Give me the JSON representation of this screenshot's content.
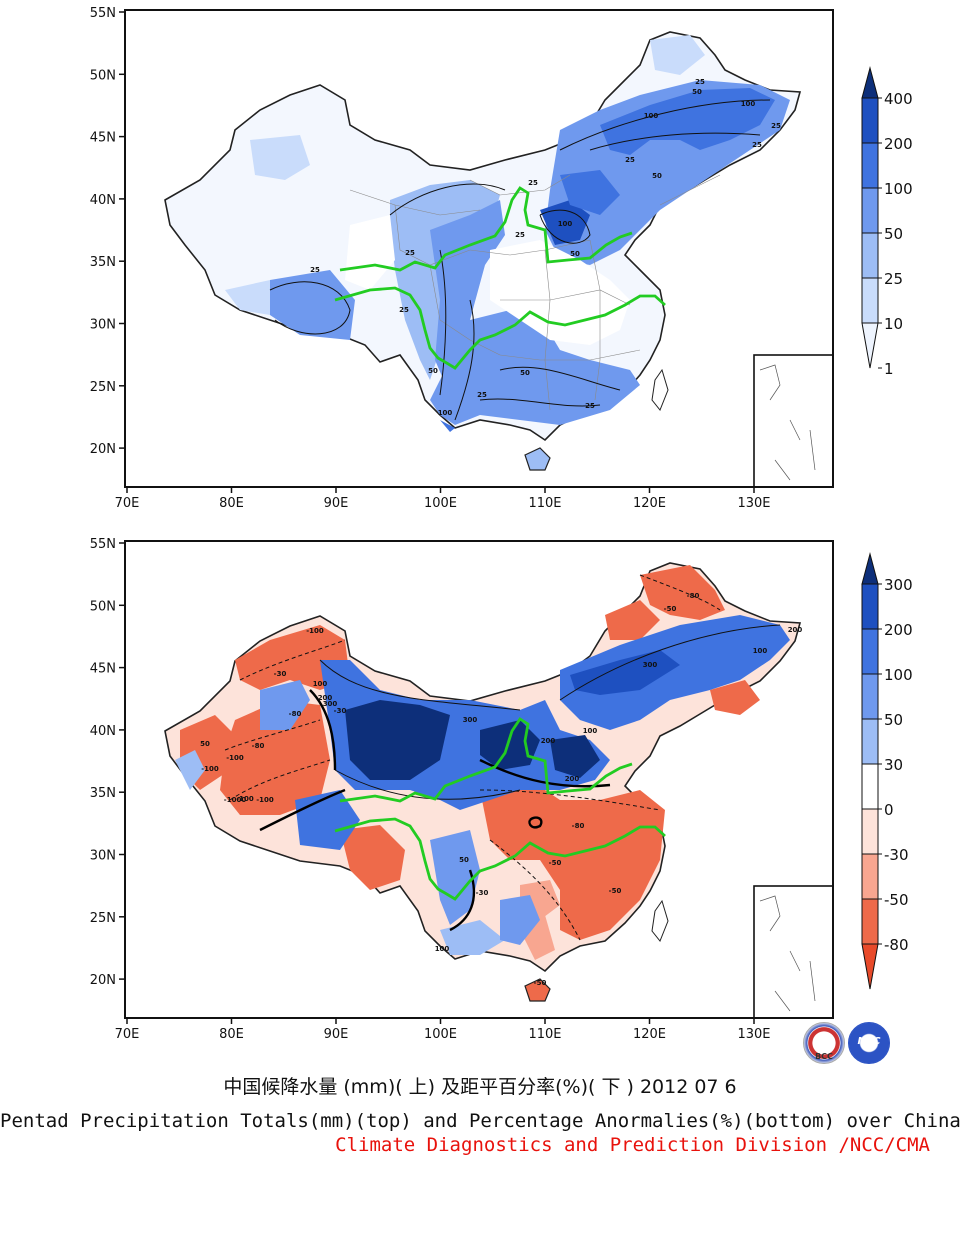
{
  "title_cn": "中国候降水量 (mm)( 上) 及距平百分率(%)( 下 ) 2012 07 6",
  "title_en": "Pentad Precipitation Totals(mm)(top) and Percentage Anormalies(%)(bottom) over China",
  "credit": "Climate Diagnostics and Prediction Division /NCC/CMA",
  "x_ticks": [
    "70E",
    "80E",
    "90E",
    "100E",
    "110E",
    "120E",
    "130E"
  ],
  "y_ticks": [
    "55N",
    "50N",
    "45N",
    "40N",
    "35N",
    "30N",
    "25N",
    "20N"
  ],
  "top_map": {
    "legend_labels": [
      "400",
      "200",
      "100",
      "50",
      "25",
      "10",
      "1"
    ],
    "legend_colors": [
      "#0d2f7a",
      "#1e50c0",
      "#3f73e0",
      "#6f99ee",
      "#9dbdf5",
      "#c9dcfb",
      "#eef4fe"
    ],
    "contour_labels": [
      "25",
      "50",
      "100",
      "25",
      "100",
      "50",
      "25",
      "25",
      "25",
      "100",
      "50",
      "25",
      "25",
      "25",
      "50",
      "25",
      "50",
      "100",
      "25",
      "25"
    ]
  },
  "bottom_map": {
    "legend_labels": [
      "300",
      "200",
      "100",
      "50",
      "30",
      "0",
      "-30",
      "-50",
      "-80"
    ],
    "legend_colors": [
      "#0d2f7a",
      "#1e50c0",
      "#3f73e0",
      "#6f99ee",
      "#9dbdf5",
      "#ffffff",
      "#fde3da",
      "#f8a690",
      "#ee6a4a",
      "#e84a2a"
    ],
    "contour_labels": [
      "-100",
      "-30",
      "-80",
      "-100",
      "200",
      "100",
      "300",
      "50",
      "-100",
      "-80",
      "-30",
      "-100",
      "-1000",
      "-100",
      "300",
      "200",
      "100",
      "-50",
      "-80",
      "-50",
      "-30",
      "50",
      "100",
      "-50",
      "-80",
      "-50",
      "200",
      "100",
      "300",
      "200"
    ]
  },
  "logos": [
    "BCC",
    "NCC"
  ]
}
